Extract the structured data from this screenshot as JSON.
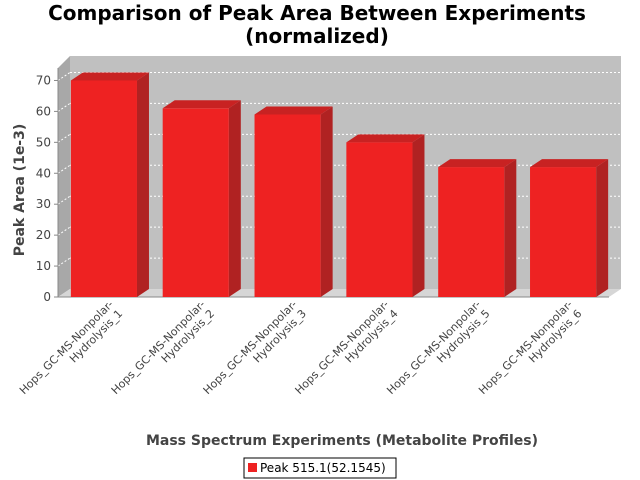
{
  "chart_data": {
    "type": "bar",
    "title_lines": [
      "Comparison of Peak Area Between Experiments",
      "(normalized)"
    ],
    "xlabel": "Mass Spectrum Experiments (Metabolite Profiles)",
    "ylabel": "Peak Area (1e-3)",
    "ylim": [
      0,
      75
    ],
    "yticks": [
      0,
      10,
      20,
      30,
      40,
      50,
      60,
      70
    ],
    "grid": true,
    "legend_position": "bottom",
    "categories": [
      [
        "Hops_GC-MS-Nonpolar-",
        "Hydrolysis_1"
      ],
      [
        "Hops_GC-MS-Nonpolar-",
        "Hydrolysis_2"
      ],
      [
        "Hops_GC-MS-Nonpolar-",
        "Hydrolysis_3"
      ],
      [
        "Hops_GC-MS-Nonpolar-",
        "Hydrolysis_4"
      ],
      [
        "Hops_GC-MS-Nonpolar-",
        "Hydrolysis_5"
      ],
      [
        "Hops_GC-MS-Nonpolar-",
        "Hydrolysis_6"
      ]
    ],
    "series": [
      {
        "name": "Peak 515.1(52.1545)",
        "color": "#ee2222",
        "values": [
          70,
          61,
          59,
          50,
          42,
          42
        ]
      }
    ]
  }
}
